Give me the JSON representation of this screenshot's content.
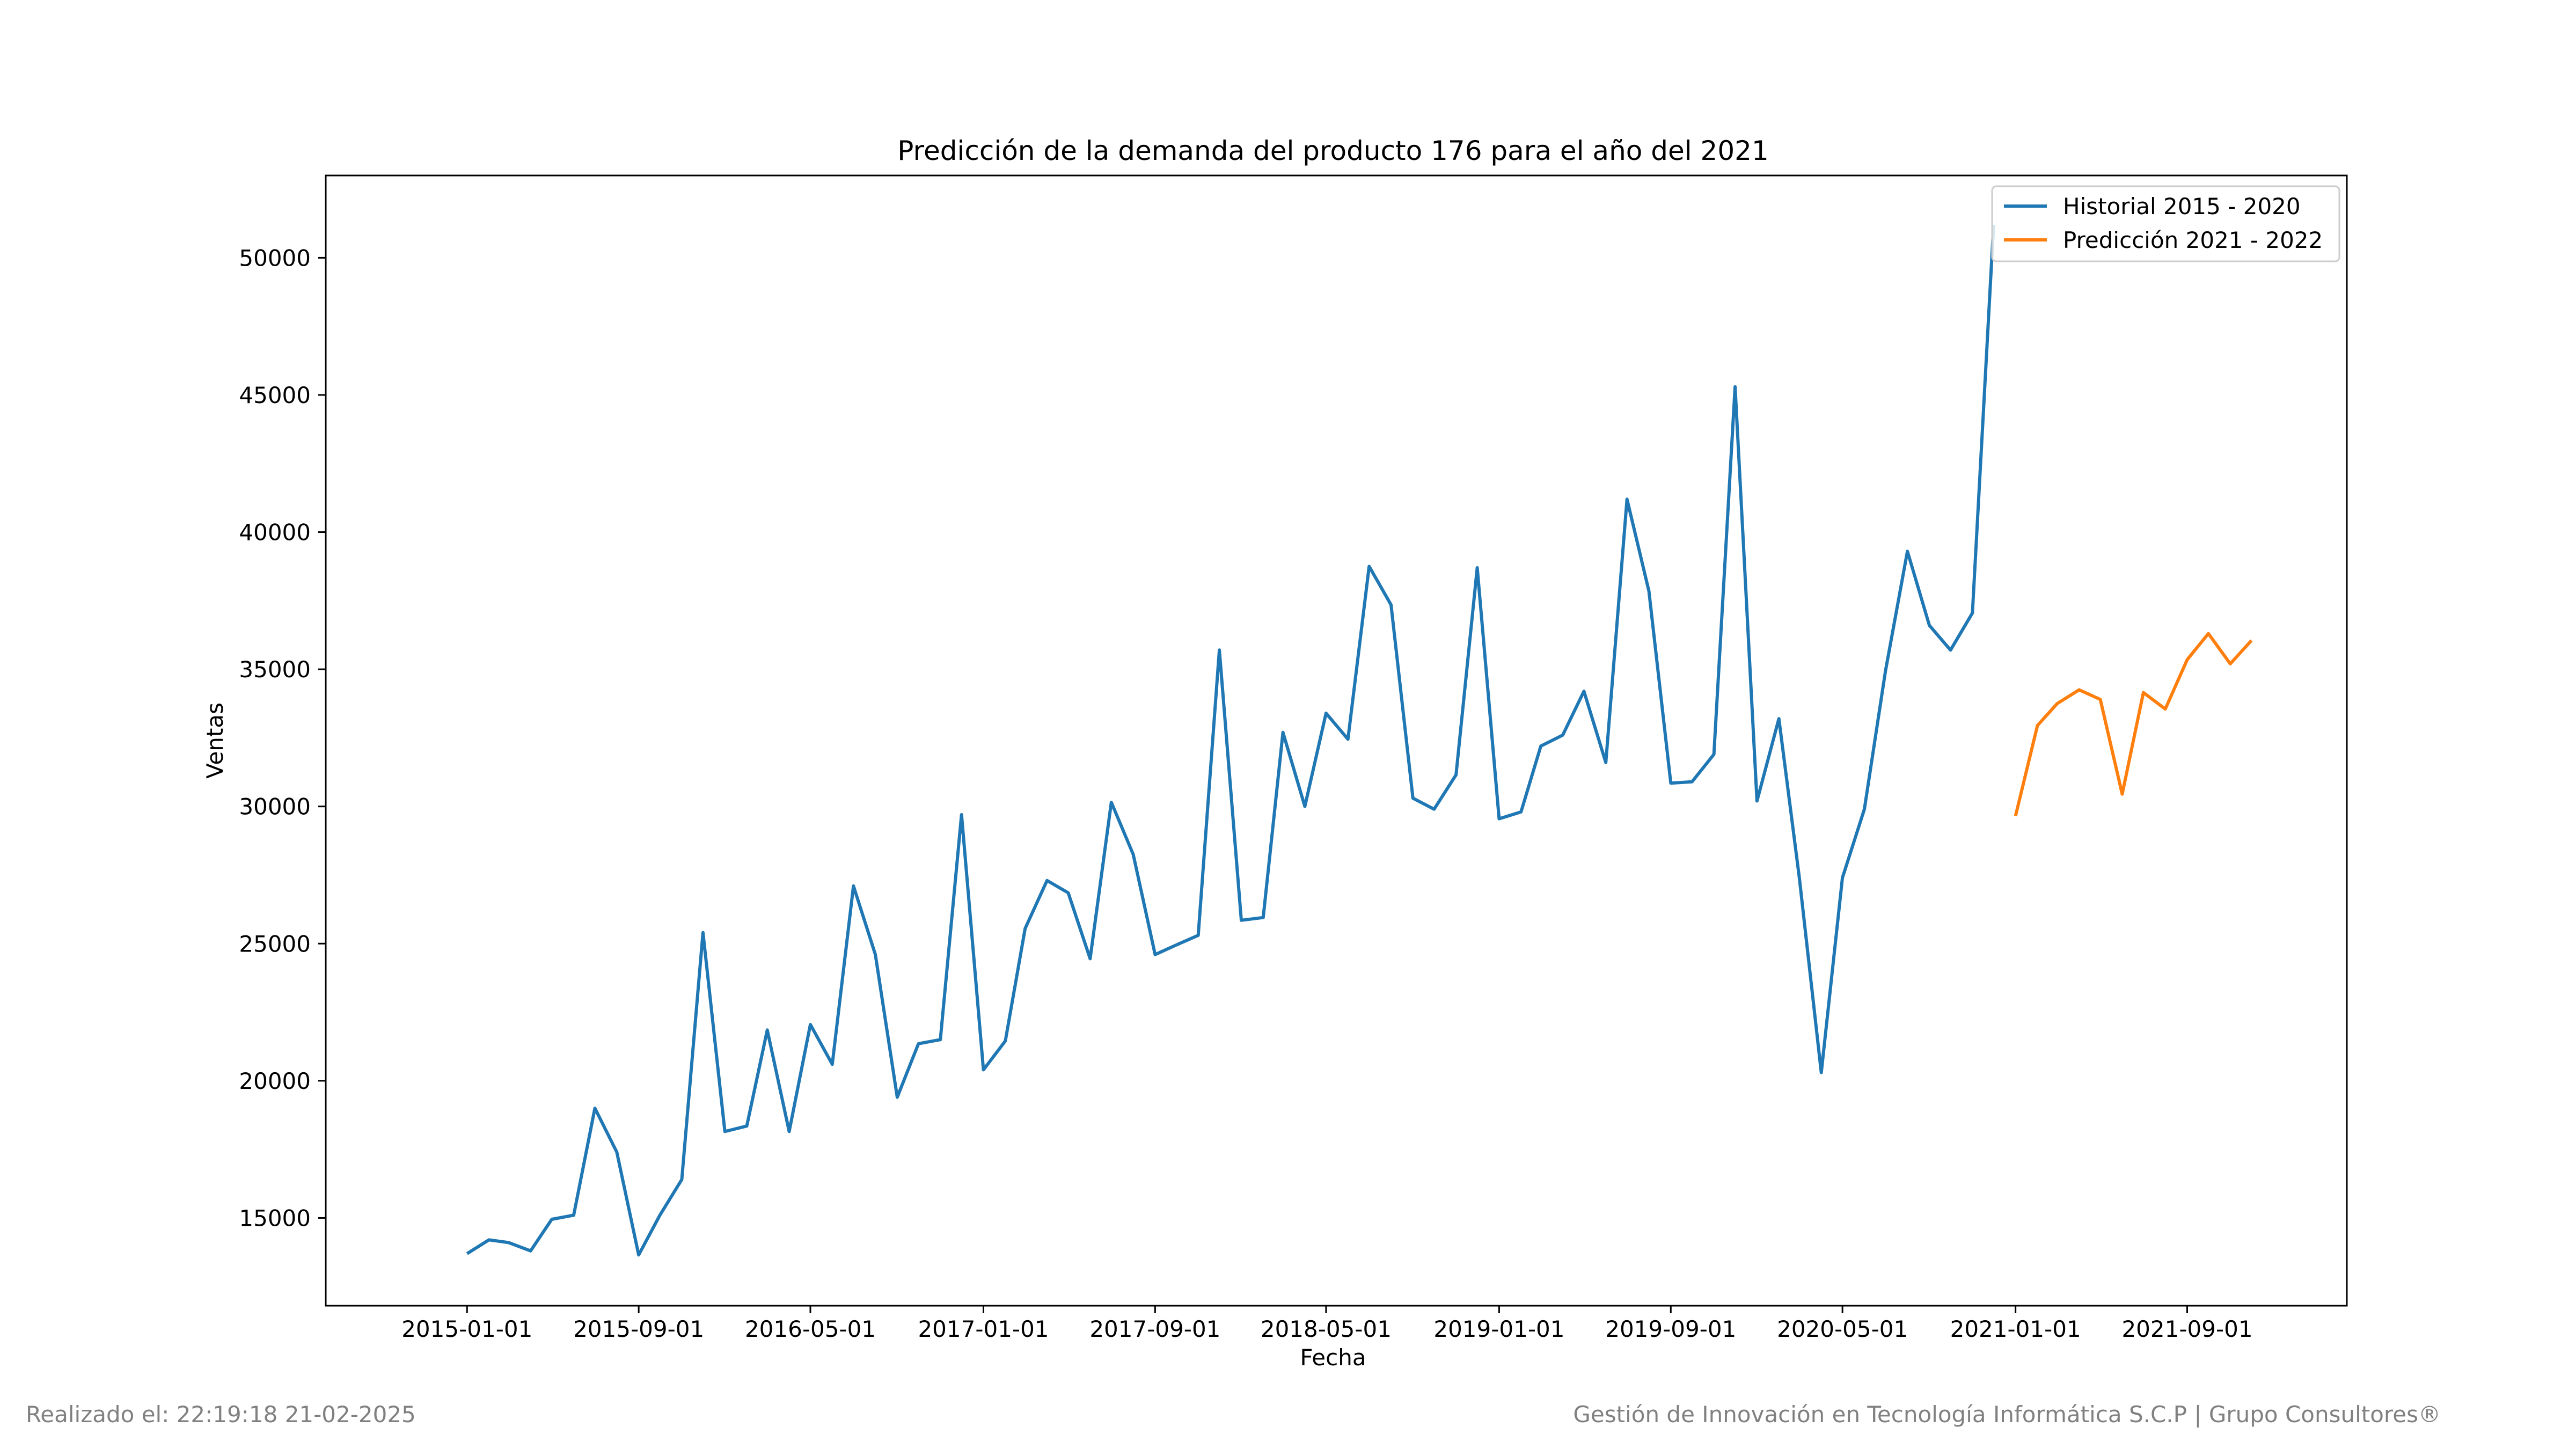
{
  "chart_data": {
    "type": "line",
    "title": "Predicción de la demanda del producto 176 para el año del 2021",
    "xlabel": "Fecha",
    "ylabel": "Ventas",
    "x_ticks": [
      "2015-01-01",
      "2015-09-01",
      "2016-05-01",
      "2017-01-01",
      "2017-09-01",
      "2018-05-01",
      "2019-01-01",
      "2019-09-01",
      "2020-05-01",
      "2021-01-01",
      "2021-09-01"
    ],
    "y_ticks": [
      15000,
      20000,
      25000,
      30000,
      35000,
      40000,
      45000,
      50000
    ],
    "xlim": [
      "2014-06-15",
      "2022-04-15"
    ],
    "ylim": [
      11800,
      53000
    ],
    "grid": false,
    "legend_position": "top-right",
    "series": [
      {
        "name": "Historial 2015 - 2020",
        "color": "#1f77b4",
        "x": [
          "2015-01-01",
          "2015-02-01",
          "2015-03-01",
          "2015-04-01",
          "2015-05-01",
          "2015-06-01",
          "2015-07-01",
          "2015-08-01",
          "2015-09-01",
          "2015-10-01",
          "2015-11-01",
          "2015-12-01",
          "2016-01-01",
          "2016-02-01",
          "2016-03-01",
          "2016-04-01",
          "2016-05-01",
          "2016-06-01",
          "2016-07-01",
          "2016-08-01",
          "2016-09-01",
          "2016-10-01",
          "2016-11-01",
          "2016-12-01",
          "2017-01-01",
          "2017-02-01",
          "2017-03-01",
          "2017-04-01",
          "2017-05-01",
          "2017-06-01",
          "2017-07-01",
          "2017-08-01",
          "2017-09-01",
          "2017-10-01",
          "2017-11-01",
          "2017-12-01",
          "2018-01-01",
          "2018-02-01",
          "2018-03-01",
          "2018-04-01",
          "2018-05-01",
          "2018-06-01",
          "2018-07-01",
          "2018-08-01",
          "2018-09-01",
          "2018-10-01",
          "2018-11-01",
          "2018-12-01",
          "2019-01-01",
          "2019-02-01",
          "2019-03-01",
          "2019-04-01",
          "2019-05-01",
          "2019-06-01",
          "2019-07-01",
          "2019-08-01",
          "2019-09-01",
          "2019-10-01",
          "2019-11-01",
          "2019-12-01",
          "2020-01-01",
          "2020-02-01",
          "2020-03-01",
          "2020-04-01",
          "2020-05-01",
          "2020-06-01",
          "2020-07-01",
          "2020-08-01",
          "2020-09-01",
          "2020-10-01",
          "2020-11-01",
          "2020-12-01"
        ],
        "y": [
          13700,
          14200,
          14100,
          13800,
          14950,
          15100,
          19000,
          17400,
          13650,
          15100,
          16400,
          25400,
          18150,
          18350,
          21850,
          18150,
          22050,
          20600,
          27100,
          24600,
          19400,
          21350,
          21500,
          29700,
          20400,
          21450,
          25550,
          27300,
          26850,
          24450,
          30150,
          28250,
          24600,
          24950,
          25300,
          35700,
          25850,
          25950,
          32700,
          30000,
          33400,
          32450,
          38750,
          37350,
          30300,
          29900,
          31150,
          38700,
          29550,
          29800,
          32200,
          32600,
          34200,
          31600,
          41200,
          37850,
          30850,
          30900,
          31900,
          45300,
          30200,
          33200,
          27400,
          20300,
          27400,
          29900,
          34950,
          39300,
          36600,
          35700,
          37050,
          51200
        ]
      },
      {
        "name": "Predicción 2021 - 2022",
        "color": "#ff7f0e",
        "x": [
          "2021-01-01",
          "2021-02-01",
          "2021-03-01",
          "2021-04-01",
          "2021-05-01",
          "2021-06-01",
          "2021-07-01",
          "2021-08-01",
          "2021-09-01",
          "2021-10-01",
          "2021-11-01",
          "2021-12-01"
        ],
        "y": [
          29650,
          32950,
          33750,
          34250,
          33900,
          30450,
          34150,
          33550,
          35350,
          36300,
          35200,
          36050
        ]
      }
    ]
  },
  "footer": {
    "left": "Realizado el: 22:19:18 21-02-2025",
    "right": "Gestión de Innovación en Tecnología Informática S.C.P | Grupo Consultores®"
  }
}
